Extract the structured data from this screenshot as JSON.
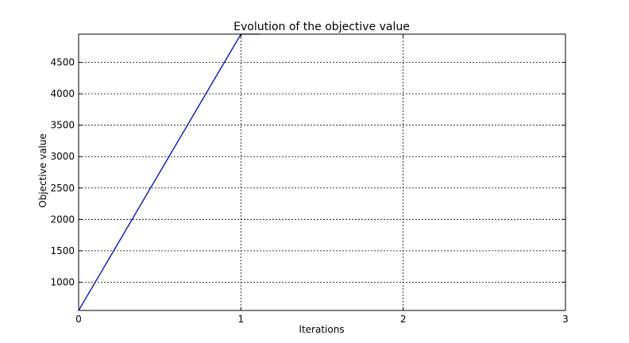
{
  "chart_data": {
    "type": "line",
    "title": "Evolution of the objective value",
    "xlabel": "Iterations",
    "ylabel": "Objective value",
    "xlim": [
      0,
      3
    ],
    "ylim": [
      550,
      4950
    ],
    "xticks": [
      0,
      1,
      2,
      3
    ],
    "yticks": [
      1000,
      1500,
      2000,
      2500,
      3000,
      3500,
      4000,
      4500
    ],
    "grid": true,
    "series": [
      {
        "color": "#0000cc",
        "x": [
          0,
          1,
          1.12
        ],
        "y": [
          550,
          4950,
          4950
        ]
      }
    ]
  }
}
